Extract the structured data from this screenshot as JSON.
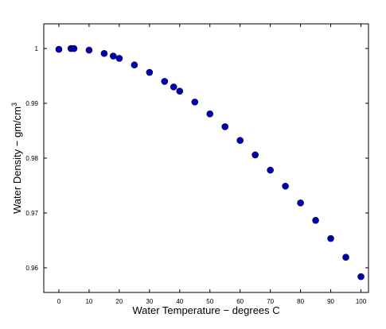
{
  "chart_data": {
    "type": "scatter",
    "xlabel": "Water Temperature − degrees C",
    "ylabel_main": "Water Density − gm/cm",
    "ylabel_sup": "3",
    "xlim": [
      -5,
      102.5
    ],
    "ylim": [
      0.9555,
      1.0045
    ],
    "x_ticks": [
      0,
      10,
      20,
      30,
      40,
      50,
      60,
      70,
      80,
      90,
      100
    ],
    "y_ticks": [
      0.96,
      0.97,
      0.98,
      0.99,
      1
    ],
    "grid": false,
    "marker_color": "#0000aa",
    "points": [
      {
        "x": 0,
        "y": 0.99985
      },
      {
        "x": 4,
        "y": 1.0
      },
      {
        "x": 5,
        "y": 0.99999
      },
      {
        "x": 10,
        "y": 0.9997
      },
      {
        "x": 15,
        "y": 0.9991
      },
      {
        "x": 18,
        "y": 0.99862
      },
      {
        "x": 20,
        "y": 0.9982
      },
      {
        "x": 25,
        "y": 0.997
      },
      {
        "x": 30,
        "y": 0.99565
      },
      {
        "x": 35,
        "y": 0.994
      },
      {
        "x": 38,
        "y": 0.99299
      },
      {
        "x": 40,
        "y": 0.99222
      },
      {
        "x": 45,
        "y": 0.99024
      },
      {
        "x": 50,
        "y": 0.98807
      },
      {
        "x": 55,
        "y": 0.98573
      },
      {
        "x": 60,
        "y": 0.98324
      },
      {
        "x": 65,
        "y": 0.98059
      },
      {
        "x": 70,
        "y": 0.97781
      },
      {
        "x": 75,
        "y": 0.97489
      },
      {
        "x": 80,
        "y": 0.97183
      },
      {
        "x": 85,
        "y": 0.96865
      },
      {
        "x": 90,
        "y": 0.96534
      },
      {
        "x": 95,
        "y": 0.96192
      },
      {
        "x": 100,
        "y": 0.95838
      }
    ]
  }
}
